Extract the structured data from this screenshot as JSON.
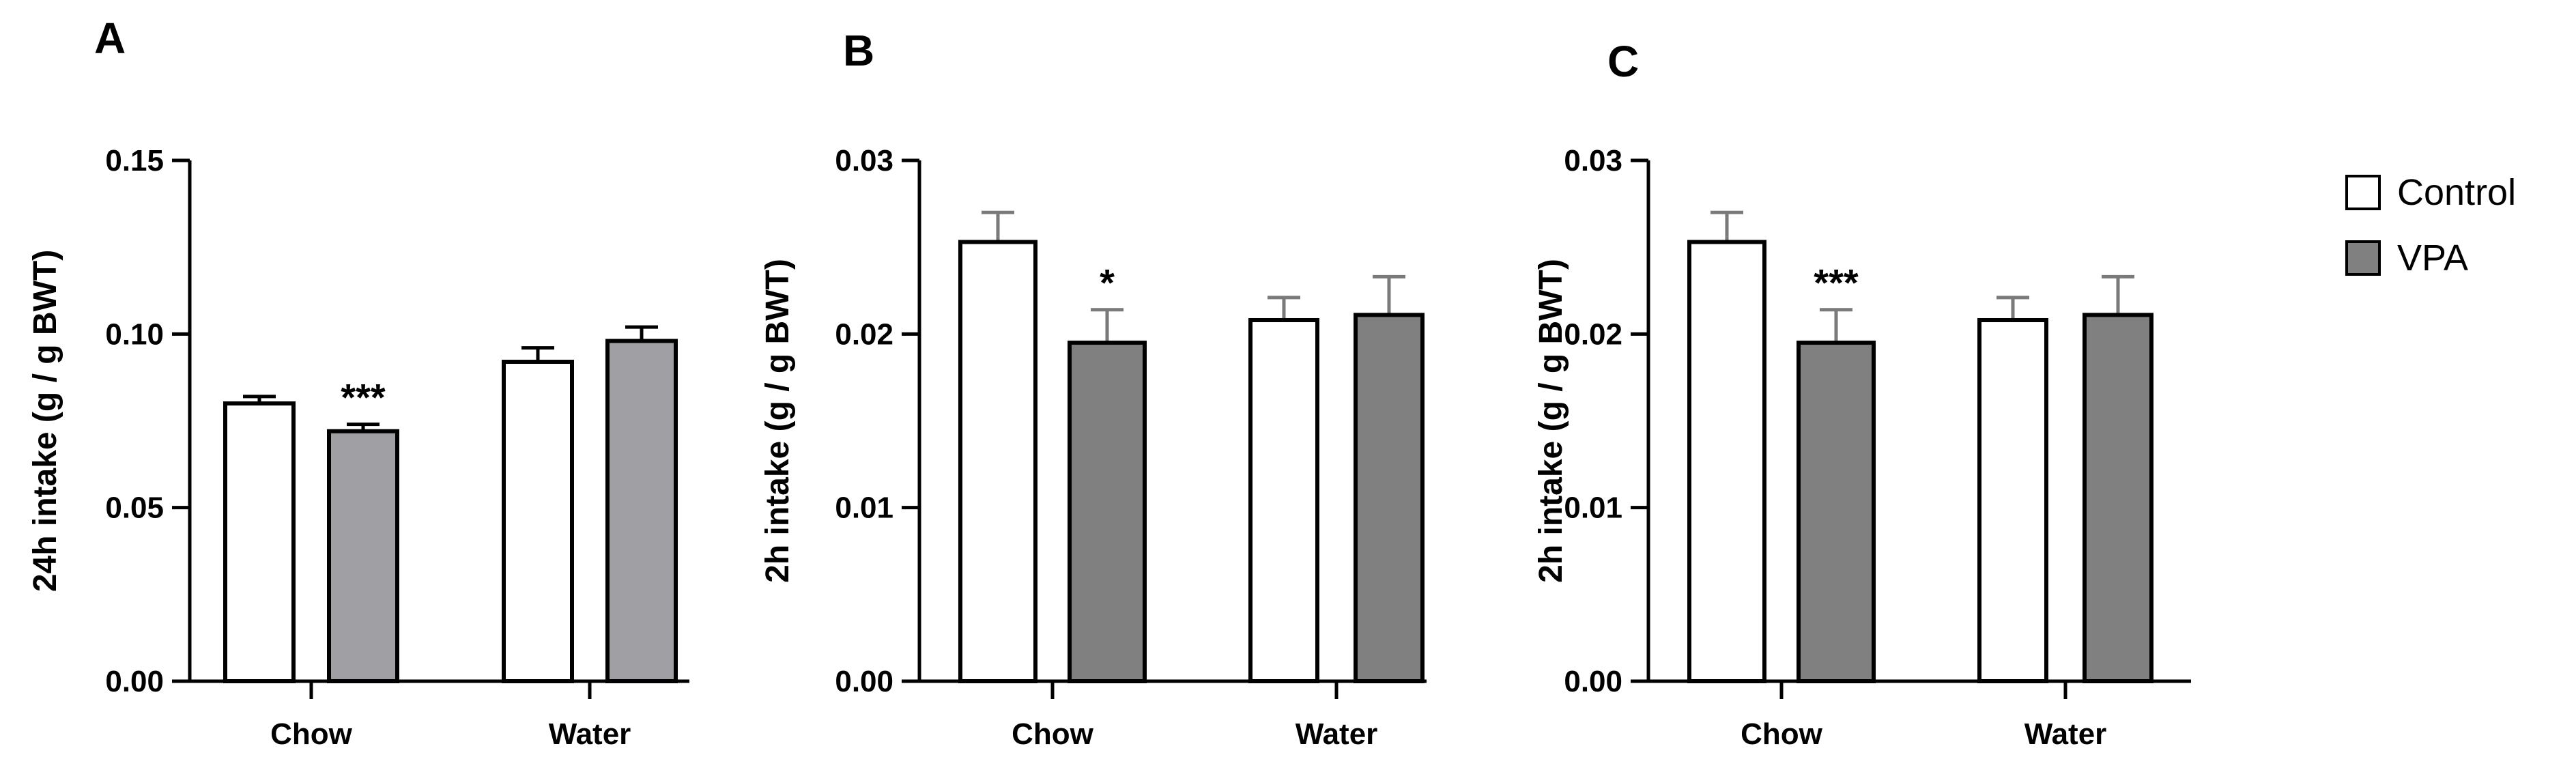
{
  "legend": {
    "entries": [
      {
        "name": "Control",
        "color": "#ffffff"
      },
      {
        "name": "VPA",
        "color": "#808080"
      }
    ]
  },
  "chart_data": [
    {
      "panel": "A",
      "type": "bar",
      "title": "",
      "xlabel": "",
      "ylabel": "24h intake (g / g BWT)",
      "categories": [
        "Chow",
        "Water"
      ],
      "ylim": [
        0,
        0.15
      ],
      "yticks": [
        0.0,
        0.05,
        0.1,
        0.15
      ],
      "ytick_labels": [
        "0.00",
        "0.05",
        "0.10",
        "0.15"
      ],
      "series": [
        {
          "name": "Control",
          "color": "#ffffff",
          "values": [
            0.08,
            0.092
          ],
          "errors": [
            0.002,
            0.004
          ]
        },
        {
          "name": "VPA",
          "color": "#a0a0a4",
          "values": [
            0.072,
            0.098
          ],
          "errors": [
            0.002,
            0.004
          ]
        }
      ],
      "annotations": [
        {
          "category": 0,
          "series": 1,
          "text": "***"
        }
      ]
    },
    {
      "panel": "B",
      "type": "bar",
      "title": "",
      "xlabel": "",
      "ylabel": "2h intake (g / g BWT)",
      "categories": [
        "Chow",
        "Water"
      ],
      "ylim": [
        0,
        0.03
      ],
      "yticks": [
        0.0,
        0.01,
        0.02,
        0.03
      ],
      "ytick_labels": [
        "0.00",
        "0.01",
        "0.02",
        "0.03"
      ],
      "series": [
        {
          "name": "Control",
          "color": "#ffffff",
          "values": [
            0.0253,
            0.0208
          ],
          "errors": [
            0.0017,
            0.0013
          ]
        },
        {
          "name": "VPA",
          "color": "#808080",
          "values": [
            0.0195,
            0.0211
          ],
          "errors": [
            0.0019,
            0.0022
          ]
        }
      ],
      "annotations": [
        {
          "category": 0,
          "series": 1,
          "text": "*"
        }
      ]
    },
    {
      "panel": "C",
      "type": "bar",
      "title": "",
      "xlabel": "",
      "ylabel": "2h intake (g / g BWT)",
      "categories": [
        "Chow",
        "Water"
      ],
      "ylim": [
        0,
        0.03
      ],
      "yticks": [
        0.0,
        0.01,
        0.02,
        0.03
      ],
      "ytick_labels": [
        "0.00",
        "0.01",
        "0.02",
        "0.03"
      ],
      "series": [
        {
          "name": "Control",
          "color": "#ffffff",
          "values": [
            0.0253,
            0.0208
          ],
          "errors": [
            0.0017,
            0.0013
          ]
        },
        {
          "name": "VPA",
          "color": "#808080",
          "values": [
            0.0195,
            0.0211
          ],
          "errors": [
            0.0019,
            0.0022
          ]
        }
      ],
      "annotations": [
        {
          "category": 0,
          "series": 1,
          "text": "***"
        }
      ]
    }
  ]
}
